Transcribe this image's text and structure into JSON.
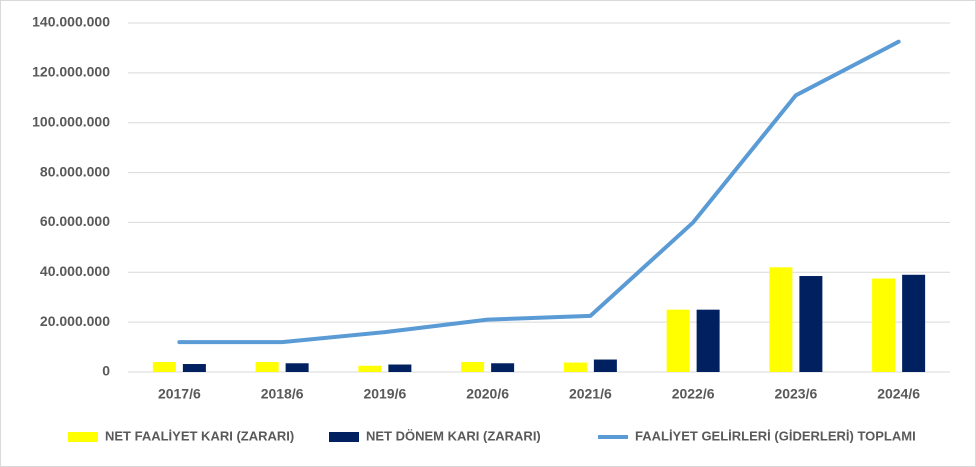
{
  "chart_data": {
    "type": "bar",
    "categories": [
      "2017/6",
      "2018/6",
      "2019/6",
      "2020/6",
      "2021/6",
      "2022/6",
      "2023/6",
      "2024/6"
    ],
    "series": [
      {
        "name": "NET FAALİYET KARI (ZARARI)",
        "color": "#ffff00",
        "values": [
          4000000,
          4000000,
          2500000,
          4000000,
          3800000,
          25000000,
          42000000,
          37500000
        ]
      },
      {
        "name": "NET DÖNEM KARI (ZARARI)",
        "color": "#002060",
        "values": [
          3200000,
          3500000,
          3000000,
          3500000,
          5000000,
          25000000,
          38500000,
          39000000
        ]
      },
      {
        "name": "FAALİYET GELİRLERİ (GİDERLERİ) TOPLAMI",
        "color": "#5b9bd5",
        "type": "line",
        "values": [
          12000000,
          12000000,
          16000000,
          21000000,
          22500000,
          60000000,
          111000000,
          132500000
        ]
      }
    ],
    "ylim": [
      0,
      140000000
    ],
    "yticks": [
      0,
      {
        "value": 20000000,
        "label": "20.000.000"
      },
      {
        "value": 40000000,
        "label": "40.000.000"
      },
      {
        "value": 60000000,
        "label": "60.000.000"
      },
      {
        "value": 80000000,
        "label": "80.000.000"
      },
      {
        "value": 100000000,
        "label": "100.000.000"
      },
      {
        "value": 120000000,
        "label": "120.000.000"
      },
      {
        "value": 140000000,
        "label": "140.000.000"
      }
    ],
    "grid": true,
    "legend": "bottom"
  }
}
